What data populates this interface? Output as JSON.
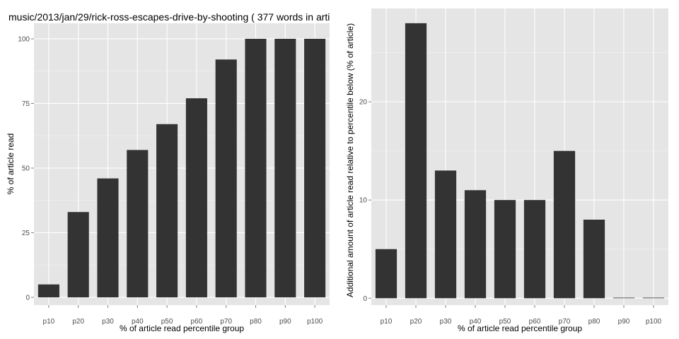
{
  "colors": {
    "panel_background": "#e5e5e5",
    "grid_major": "#ffffff",
    "grid_minor": "#f2f2f2",
    "bar_fill": "#333333",
    "tick_text": "#4d4d4d",
    "title_text": "#000000"
  },
  "chart_data": [
    {
      "type": "bar",
      "title": "music/2013/jan/29/rick-ross-escapes-drive-by-shooting ( 377 words in arti",
      "xlabel": "% of article read percentile group",
      "ylabel": "% of article read",
      "categories": [
        "p10",
        "p20",
        "p30",
        "p40",
        "p50",
        "p60",
        "p70",
        "p80",
        "p90",
        "p100"
      ],
      "values": [
        5,
        33,
        46,
        57,
        67,
        77,
        92,
        100,
        100,
        100
      ],
      "ylim": [
        -3,
        106
      ],
      "yticks": [
        0,
        25,
        50,
        75,
        100
      ],
      "grid": true,
      "legend": "none"
    },
    {
      "type": "bar",
      "title": "",
      "xlabel": "% of article read percentile group",
      "ylabel": "Additional amount of article read relative to percentile below (% of article)",
      "categories": [
        "p10",
        "p20",
        "p30",
        "p40",
        "p50",
        "p60",
        "p70",
        "p80",
        "p90",
        "p100"
      ],
      "values": [
        5,
        28,
        13,
        11,
        10,
        10,
        15,
        8,
        0,
        0
      ],
      "ylim": [
        -0.7,
        29.5
      ],
      "yticks": [
        0,
        10,
        20
      ],
      "grid": true,
      "legend": "none"
    }
  ]
}
